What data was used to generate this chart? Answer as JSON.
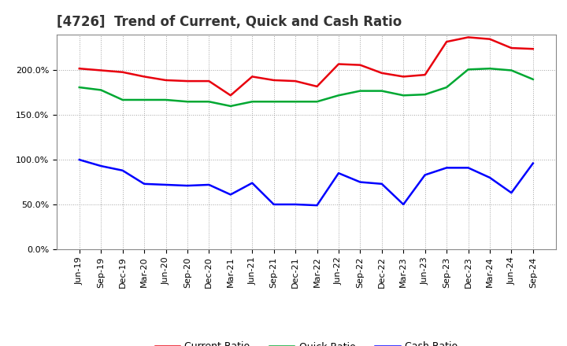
{
  "title": "[4726]  Trend of Current, Quick and Cash Ratio",
  "labels": [
    "Jun-19",
    "Sep-19",
    "Dec-19",
    "Mar-20",
    "Jun-20",
    "Sep-20",
    "Dec-20",
    "Mar-21",
    "Jun-21",
    "Sep-21",
    "Dec-21",
    "Mar-22",
    "Jun-22",
    "Sep-22",
    "Dec-22",
    "Mar-23",
    "Jun-23",
    "Sep-23",
    "Dec-23",
    "Mar-24",
    "Jun-24",
    "Sep-24"
  ],
  "current_ratio": [
    202,
    200,
    198,
    193,
    189,
    188,
    188,
    172,
    193,
    189,
    188,
    182,
    207,
    206,
    197,
    193,
    195,
    232,
    237,
    235,
    225,
    224
  ],
  "quick_ratio": [
    181,
    178,
    167,
    167,
    167,
    165,
    165,
    160,
    165,
    165,
    165,
    165,
    172,
    177,
    177,
    172,
    173,
    181,
    201,
    202,
    200,
    190
  ],
  "cash_ratio": [
    100,
    93,
    88,
    73,
    72,
    71,
    72,
    61,
    74,
    50,
    50,
    49,
    85,
    75,
    73,
    50,
    83,
    91,
    91,
    80,
    63,
    96
  ],
  "current_color": "#e8000d",
  "quick_color": "#00a832",
  "cash_color": "#0000ff",
  "line_width": 1.8,
  "ylim": [
    0,
    240
  ],
  "yticks": [
    0,
    50,
    100,
    150,
    200
  ],
  "ytick_labels": [
    "0.0%",
    "50.0%",
    "100.0%",
    "150.0%",
    "200.0%"
  ],
  "background_color": "#ffffff",
  "plot_bg_color": "#ffffff",
  "grid_color": "#999999",
  "title_fontsize": 12,
  "tick_fontsize": 8,
  "legend_labels": [
    "Current Ratio",
    "Quick Ratio",
    "Cash Ratio"
  ]
}
